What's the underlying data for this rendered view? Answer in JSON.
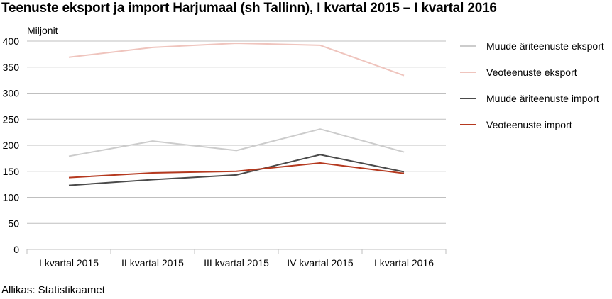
{
  "chart_data": {
    "type": "line",
    "title": "Teenuste eksport ja import Harjumaal (sh Tallinn), I kvartal 2015 – I kvartal 2016",
    "ylabel": "Miljonit",
    "xlabel": "",
    "source": "Allikas: Statistikaamet",
    "categories": [
      "I kvartal 2015",
      "II kvartal 2015",
      "III kvartal 2015",
      "IV kvartal 2015",
      "I kvartal 2016"
    ],
    "ylim": [
      0,
      400
    ],
    "yticks": [
      0,
      50,
      100,
      150,
      200,
      250,
      300,
      350,
      400
    ],
    "grid": true,
    "legend_position": "right",
    "series": [
      {
        "name": "Muude äriteenuste eksport",
        "color": "#cccccc",
        "values": [
          179,
          208,
          190,
          231,
          187
        ]
      },
      {
        "name": "Veoteenuste eksport",
        "color": "#efc4bd",
        "values": [
          369,
          388,
          396,
          392,
          334
        ]
      },
      {
        "name": "Muude äriteenuste import",
        "color": "#4a4a4a",
        "values": [
          123,
          134,
          143,
          182,
          149
        ]
      },
      {
        "name": "Veoteenuste import",
        "color": "#b5391f",
        "values": [
          138,
          147,
          150,
          166,
          146
        ]
      }
    ]
  }
}
